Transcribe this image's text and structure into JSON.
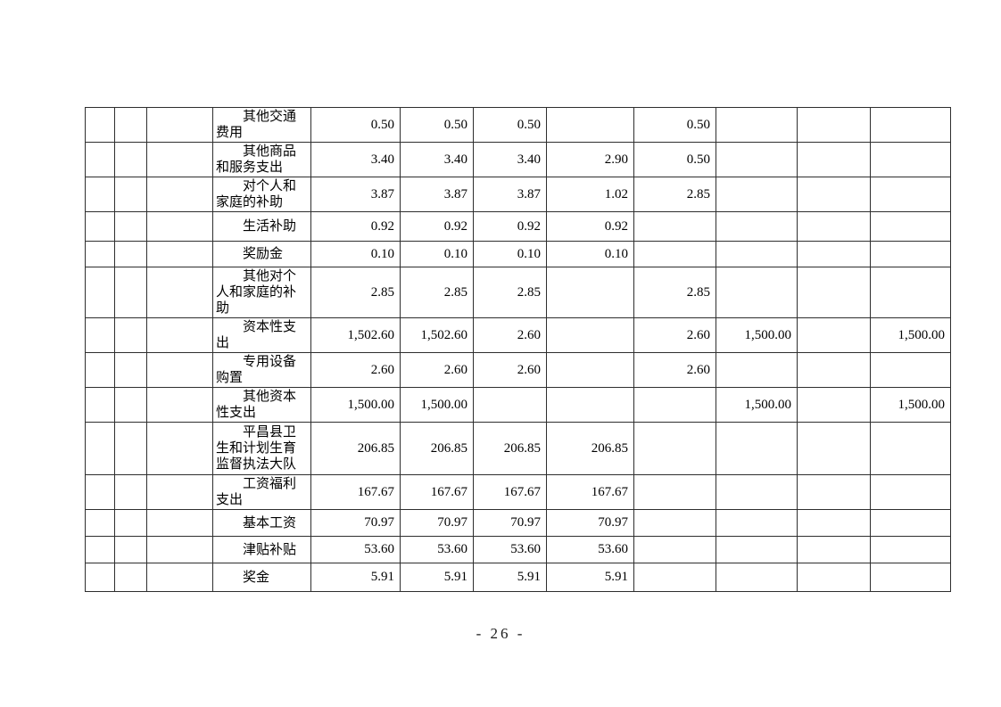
{
  "page": {
    "footer": "- 26 -"
  },
  "table": {
    "left_empty_columns": 3,
    "value_columns": 8,
    "rows": [
      {
        "label": "其他交通费用",
        "values": [
          "0.50",
          "0.50",
          "0.50",
          "",
          "0.50",
          "",
          "",
          ""
        ]
      },
      {
        "label": "其他商品和服务支出",
        "values": [
          "3.40",
          "3.40",
          "3.40",
          "2.90",
          "0.50",
          "",
          "",
          ""
        ]
      },
      {
        "label": "对个人和家庭的补助",
        "values": [
          "3.87",
          "3.87",
          "3.87",
          "1.02",
          "2.85",
          "",
          "",
          ""
        ]
      },
      {
        "label": "生活补助",
        "values": [
          "0.92",
          "0.92",
          "0.92",
          "0.92",
          "",
          "",
          "",
          ""
        ]
      },
      {
        "label": "奖励金",
        "values": [
          "0.10",
          "0.10",
          "0.10",
          "0.10",
          "",
          "",
          "",
          ""
        ]
      },
      {
        "label": "其他对个人和家庭的补助",
        "values": [
          "2.85",
          "2.85",
          "2.85",
          "",
          "2.85",
          "",
          "",
          ""
        ]
      },
      {
        "label": "资本性支出",
        "values": [
          "1,502.60",
          "1,502.60",
          "2.60",
          "",
          "2.60",
          "1,500.00",
          "",
          "1,500.00"
        ]
      },
      {
        "label": "专用设备购置",
        "values": [
          "2.60",
          "2.60",
          "2.60",
          "",
          "2.60",
          "",
          "",
          ""
        ]
      },
      {
        "label": "其他资本性支出",
        "values": [
          "1,500.00",
          "1,500.00",
          "",
          "",
          "",
          "1,500.00",
          "",
          "1,500.00"
        ]
      },
      {
        "label": "平昌县卫生和计划生育监督执法大队",
        "values": [
          "206.85",
          "206.85",
          "206.85",
          "206.85",
          "",
          "",
          "",
          ""
        ]
      },
      {
        "label": "工资福利支出",
        "values": [
          "167.67",
          "167.67",
          "167.67",
          "167.67",
          "",
          "",
          "",
          ""
        ]
      },
      {
        "label": "基本工资",
        "values": [
          "70.97",
          "70.97",
          "70.97",
          "70.97",
          "",
          "",
          "",
          ""
        ]
      },
      {
        "label": "津贴补贴",
        "values": [
          "53.60",
          "53.60",
          "53.60",
          "53.60",
          "",
          "",
          "",
          ""
        ]
      },
      {
        "label": "奖金",
        "values": [
          "5.91",
          "5.91",
          "5.91",
          "5.91",
          "",
          "",
          "",
          ""
        ]
      }
    ]
  }
}
